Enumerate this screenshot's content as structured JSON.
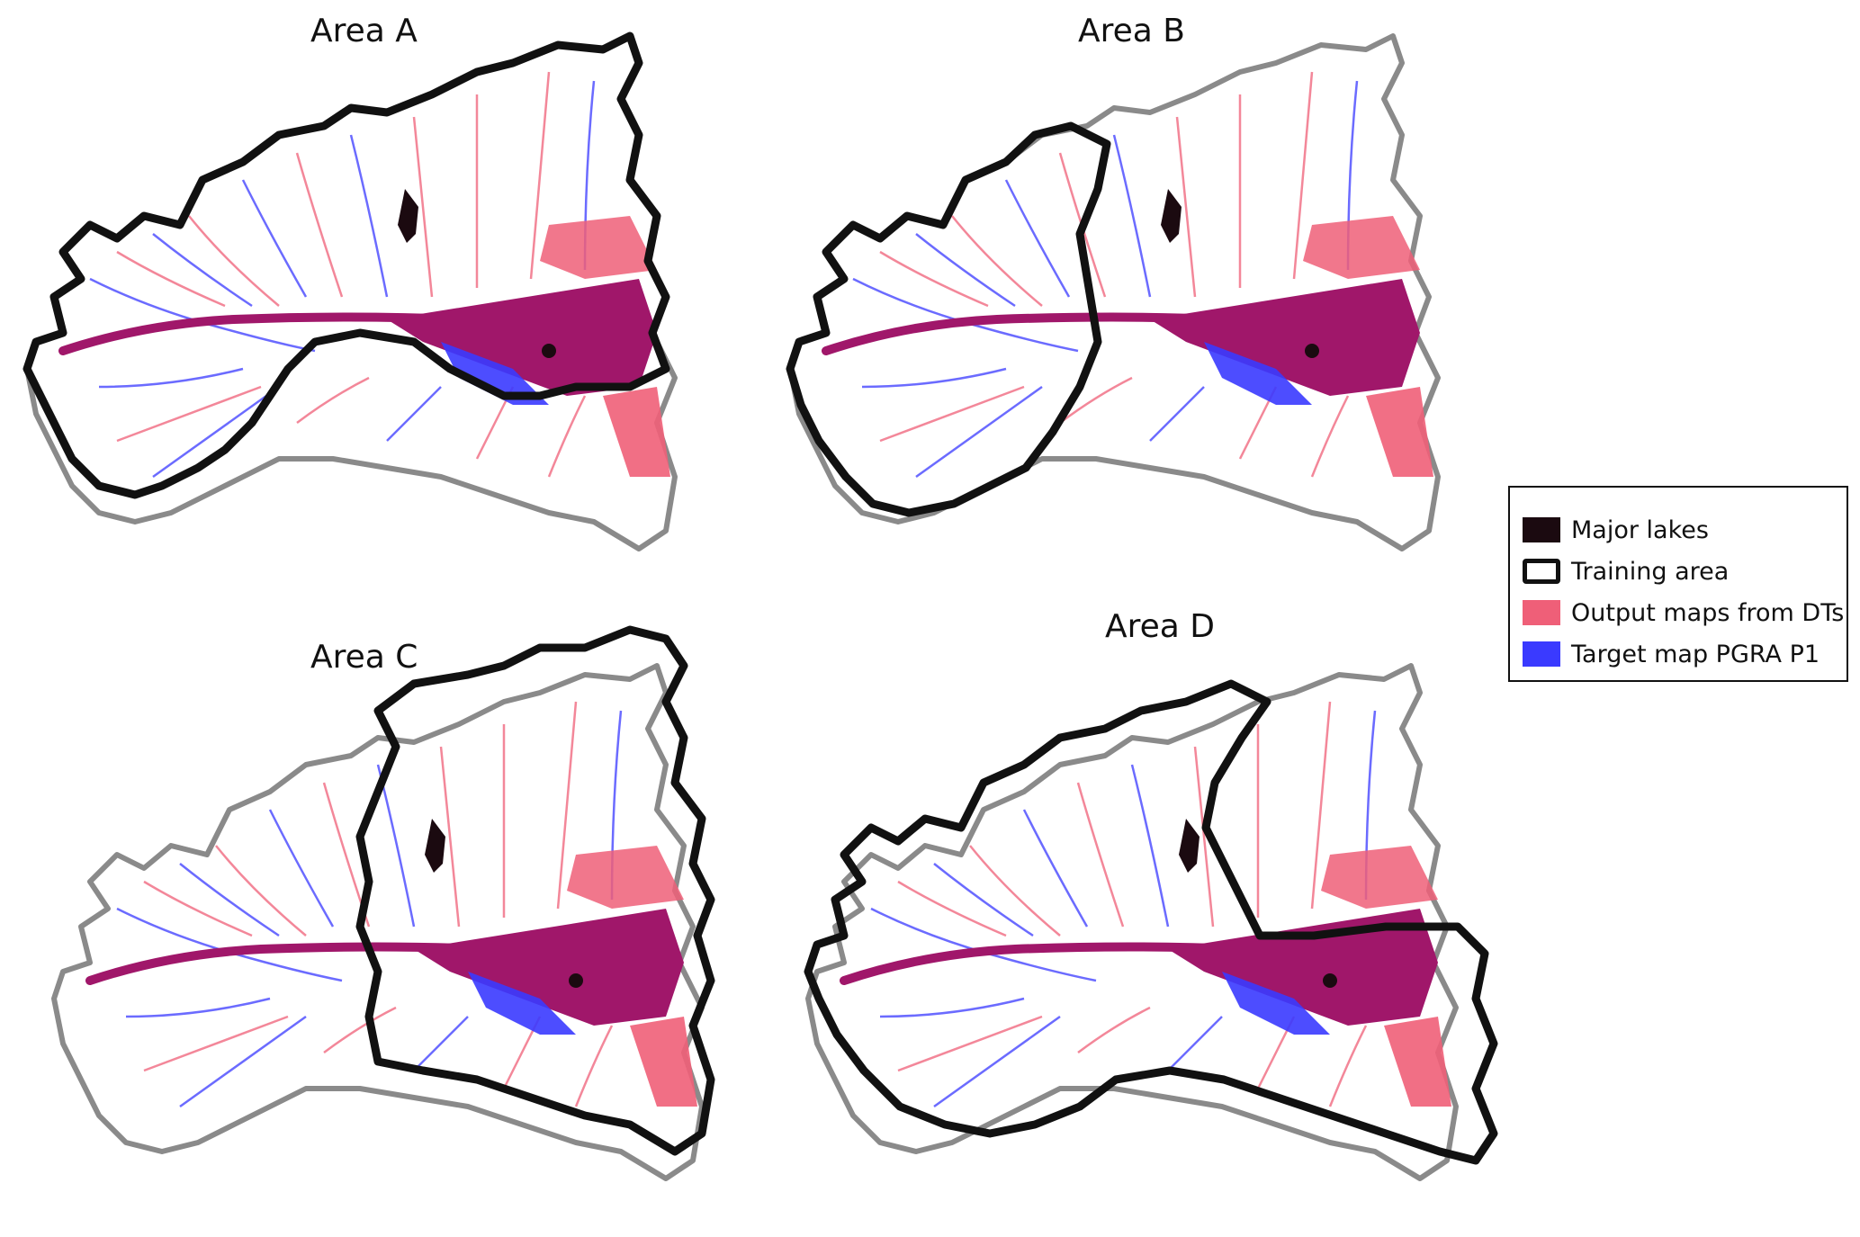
{
  "panels": [
    {
      "title": "Area A",
      "training_region": "west"
    },
    {
      "title": "Area B",
      "training_region": "west-core"
    },
    {
      "title": "Area C",
      "training_region": "east"
    },
    {
      "title": "Area D",
      "training_region": "central-east"
    }
  ],
  "legend": {
    "items": [
      {
        "label": "Major lakes",
        "color": "#1b0a10",
        "kind": "fill"
      },
      {
        "label": "Training area",
        "color": "#111111",
        "kind": "outline"
      },
      {
        "label": "Output maps from DTs",
        "color": "#ef5f78",
        "kind": "fill"
      },
      {
        "label": "Target map PGRA P1",
        "color": "#3a3aff",
        "kind": "fill"
      }
    ]
  },
  "colors": {
    "basin_outline": "#8a8a8a",
    "training_outline": "#111111",
    "overlap": "#a0176a",
    "output": "#ef5f78",
    "target": "#3a3aff",
    "lakes": "#1b0a10"
  }
}
